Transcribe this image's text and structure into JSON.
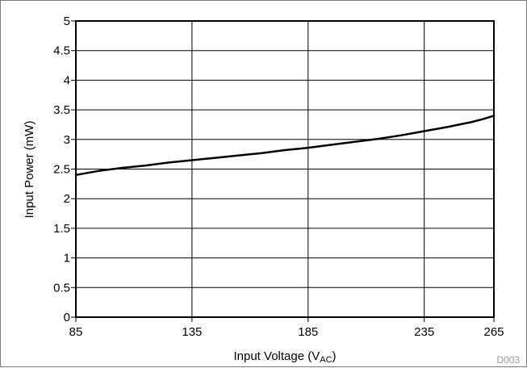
{
  "chart_data": {
    "type": "line",
    "title": "",
    "xlabel_parts": {
      "main": "Input Voltage (V",
      "sub": "AC",
      "tail": ")"
    },
    "ylabel": "Input Power (mW)",
    "xlim": [
      85,
      265
    ],
    "ylim": [
      0,
      5
    ],
    "x_ticks": [
      "85",
      "135",
      "185",
      "235",
      "265"
    ],
    "x_tick_values": [
      85,
      135,
      185,
      235,
      265
    ],
    "y_ticks": [
      "0",
      "0.5",
      "1",
      "1.5",
      "2",
      "2.5",
      "3",
      "3.5",
      "4",
      "4.5",
      "5"
    ],
    "y_tick_values": [
      0,
      0.5,
      1,
      1.5,
      2,
      2.5,
      3,
      3.5,
      4,
      4.5,
      5
    ],
    "grid": true,
    "legend": "none",
    "series": [
      {
        "x": [
          85,
          95,
          105,
          115,
          125,
          135,
          145,
          155,
          165,
          175,
          185,
          195,
          205,
          215,
          225,
          235,
          245,
          250,
          255,
          260,
          265
        ],
        "y": [
          2.4,
          2.47,
          2.52,
          2.56,
          2.61,
          2.65,
          2.69,
          2.73,
          2.77,
          2.82,
          2.86,
          2.91,
          2.96,
          3.01,
          3.07,
          3.14,
          3.21,
          3.25,
          3.29,
          3.34,
          3.4
        ],
        "color": "#000000"
      }
    ],
    "figure_code": "D003"
  }
}
